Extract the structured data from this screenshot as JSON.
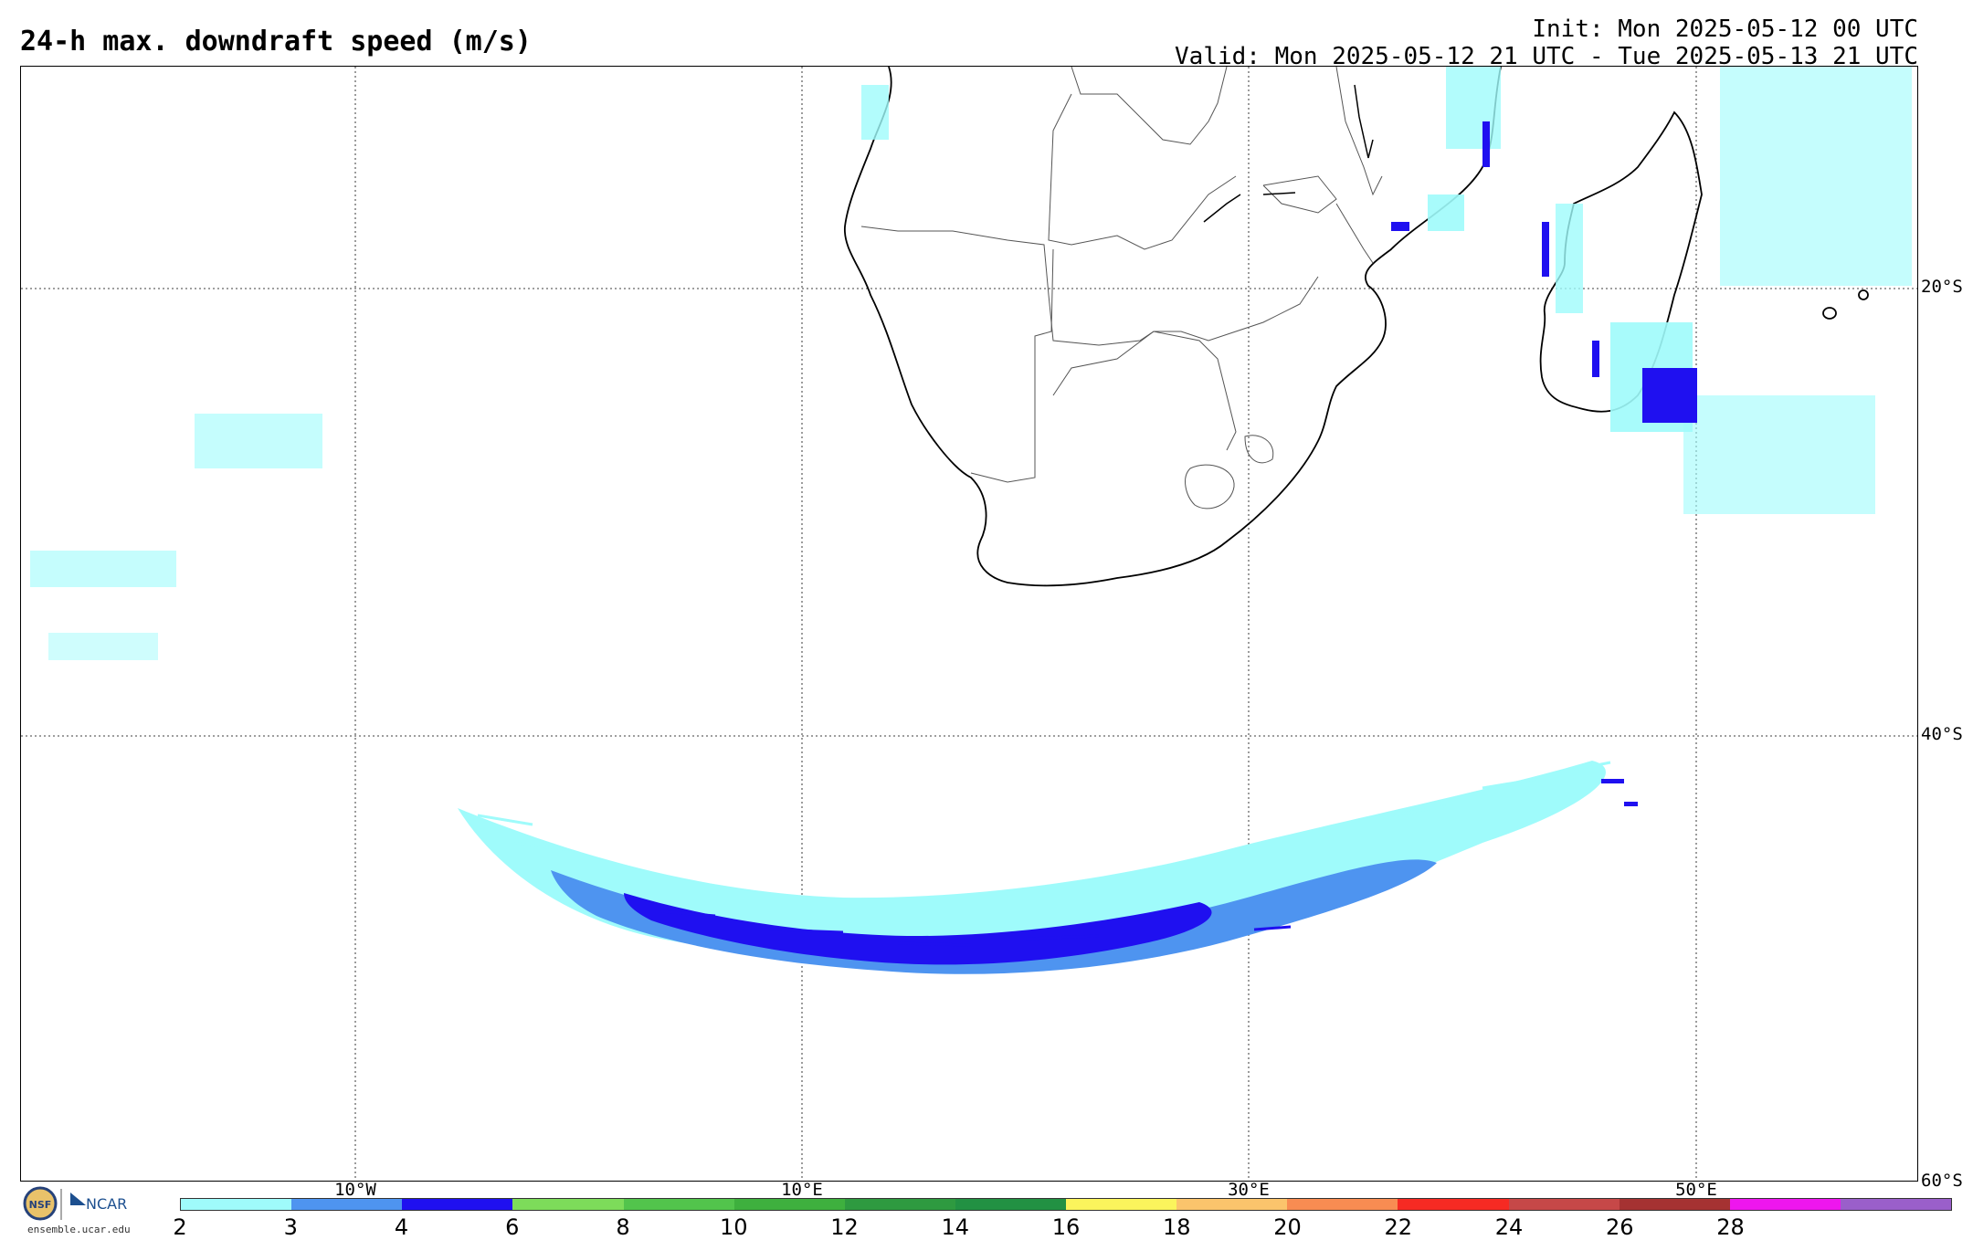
{
  "header": {
    "title": "24-h max. downdraft speed (m/s)",
    "init": "Init: Mon 2025-05-12 00 UTC",
    "valid": "Valid: Mon 2025-05-12 21 UTC - Tue 2025-05-13 21 UTC"
  },
  "map": {
    "lat_labels": [
      "20°S",
      "40°S",
      "60°S"
    ],
    "lon_labels": [
      "10°W",
      "10°E",
      "30°E",
      "50°E"
    ]
  },
  "logo": {
    "org1": "NSF",
    "org2": "NCAR",
    "url": "ensemble.ucar.edu"
  },
  "colorbar": {
    "ticks": [
      "2",
      "3",
      "4",
      "6",
      "8",
      "10",
      "12",
      "14",
      "16",
      "18",
      "20",
      "22",
      "24",
      "26",
      "28"
    ],
    "colors": [
      "#9ffbfb",
      "#4e94f0",
      "#1f10f0",
      "#7ddc5a",
      "#52c44c",
      "#3eb03e",
      "#2e9a40",
      "#229143",
      "#fbf45c",
      "#fbc46c",
      "#f88c52",
      "#f62a23",
      "#c64848",
      "#a53232",
      "#ee16ee",
      "#9a5fca"
    ]
  }
}
